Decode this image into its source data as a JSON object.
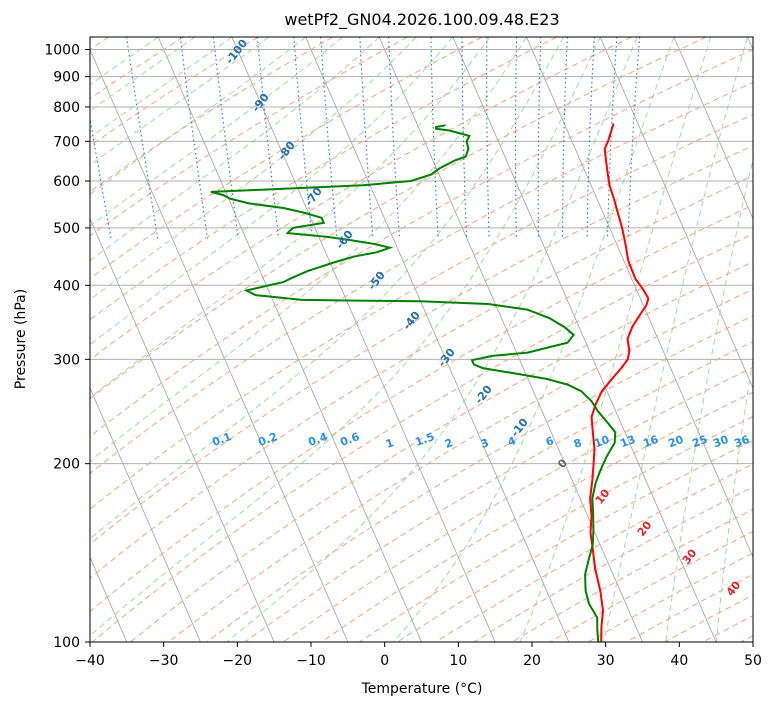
{
  "chart_data": {
    "type": "line",
    "title": "wetPf2_GN04.2026.100.09.48.E23",
    "xlabel": "Temperature (°C)",
    "ylabel": "Pressure (hPa)",
    "xlim": [
      -40,
      50
    ],
    "ylim": [
      1050,
      100
    ],
    "x_ticks": [
      "−40",
      "−30",
      "−20",
      "−10",
      "0",
      "10",
      "20",
      "30",
      "40",
      "50"
    ],
    "x_tick_values": [
      -40,
      -30,
      -20,
      -10,
      0,
      10,
      20,
      30,
      40,
      50
    ],
    "y_ticks": [
      "100",
      "200",
      "300",
      "400",
      "500",
      "600",
      "700",
      "800",
      "900",
      "1000"
    ],
    "y_tick_values": [
      100,
      200,
      300,
      400,
      500,
      600,
      700,
      800,
      900,
      1000
    ],
    "series": [
      {
        "name": "Temperature",
        "color": "#ff0000",
        "points": [
          [
            26.7,
            750
          ],
          [
            26,
            730
          ],
          [
            24.9,
            700
          ],
          [
            24,
            680
          ],
          [
            23.5,
            650
          ],
          [
            23,
            620
          ],
          [
            22.5,
            590
          ],
          [
            22.3,
            560
          ],
          [
            22,
            530
          ],
          [
            21.7,
            500
          ],
          [
            21.2,
            470
          ],
          [
            20.6,
            440
          ],
          [
            20.5,
            410
          ],
          [
            20.9,
            395
          ],
          [
            21.1,
            380
          ],
          [
            20.4,
            370
          ],
          [
            18.8,
            355
          ],
          [
            17.2,
            340
          ],
          [
            15.9,
            325
          ],
          [
            15.4,
            310
          ],
          [
            14.7,
            300
          ],
          [
            13.3,
            290
          ],
          [
            11.4,
            278
          ],
          [
            9.3,
            265
          ],
          [
            7.7,
            252
          ],
          [
            6.4,
            240
          ],
          [
            5.6,
            225
          ],
          [
            4.9,
            212
          ],
          [
            3.9,
            200
          ],
          [
            2.8,
            188
          ],
          [
            1.4,
            175
          ],
          [
            0.5,
            163
          ],
          [
            -0.6,
            153
          ],
          [
            -1.3,
            143
          ],
          [
            -2.1,
            133
          ],
          [
            -2.7,
            122
          ],
          [
            -3.5,
            113
          ],
          [
            -4.7,
            106
          ],
          [
            -5.6,
            100
          ]
        ]
      },
      {
        "name": "Dewpoint",
        "color": "#008000",
        "points": [
          [
            3.8,
            745
          ],
          [
            2.4,
            740
          ],
          [
            2.3,
            735
          ],
          [
            4,
            730
          ],
          [
            6.4,
            715
          ],
          [
            5.7,
            700
          ],
          [
            5.5,
            680
          ],
          [
            4.7,
            660
          ],
          [
            3,
            650
          ],
          [
            1.7,
            640
          ],
          [
            0.4,
            630
          ],
          [
            -1.1,
            615
          ],
          [
            -4.2,
            600
          ],
          [
            -11,
            590
          ],
          [
            -25,
            580
          ],
          [
            -32,
            575
          ],
          [
            -30.5,
            568
          ],
          [
            -29.8,
            560
          ],
          [
            -27.5,
            550
          ],
          [
            -23,
            540
          ],
          [
            -20.5,
            530
          ],
          [
            -18.5,
            520
          ],
          [
            -18.5,
            510
          ],
          [
            -23,
            500
          ],
          [
            -24,
            490
          ],
          [
            -19,
            483
          ],
          [
            -16,
            477
          ],
          [
            -13,
            470
          ],
          [
            -11,
            463
          ],
          [
            -13,
            455
          ],
          [
            -16.5,
            447
          ],
          [
            -19.5,
            437
          ],
          [
            -23.5,
            423
          ],
          [
            -26,
            412
          ],
          [
            -27.5,
            405
          ],
          [
            -30.5,
            398
          ],
          [
            -33,
            392
          ],
          [
            -32,
            385
          ],
          [
            -26,
            378
          ],
          [
            -20,
            377
          ],
          [
            -10,
            376
          ],
          [
            -1,
            372
          ],
          [
            4,
            364
          ],
          [
            6.5,
            352
          ],
          [
            8,
            340
          ],
          [
            8.8,
            330
          ],
          [
            7.5,
            320
          ],
          [
            4.5,
            314
          ],
          [
            1.5,
            308
          ],
          [
            -3.5,
            304
          ],
          [
            -6.5,
            299
          ],
          [
            -6.5,
            294
          ],
          [
            -5.5,
            290
          ],
          [
            -1.5,
            284
          ],
          [
            2.5,
            278
          ],
          [
            5,
            272
          ],
          [
            6.5,
            265
          ],
          [
            7.3,
            255
          ],
          [
            7.6,
            245
          ],
          [
            8.2,
            235
          ],
          [
            8.7,
            226
          ],
          [
            8,
            217
          ],
          [
            6,
            205
          ],
          [
            4.6,
            196
          ],
          [
            3.1,
            186
          ],
          [
            1.7,
            175
          ],
          [
            0.9,
            165
          ],
          [
            0,
            155
          ],
          [
            -1,
            146
          ],
          [
            -2.4,
            138
          ],
          [
            -3.8,
            130
          ],
          [
            -4.7,
            122
          ],
          [
            -5,
            116
          ],
          [
            -4.7,
            110
          ],
          [
            -5.4,
            105
          ],
          [
            -6,
            100
          ]
        ]
      }
    ],
    "dry_adiabat_labels": [
      "-100",
      "-90",
      "-80",
      "-70",
      "-60",
      "-50",
      "-40",
      "-30",
      "-20",
      "-10",
      "0",
      "10",
      "20",
      "30",
      "40"
    ],
    "mixing_ratio_labels": [
      "0.1",
      "0.2",
      "0.4",
      "0.6",
      "1",
      "1.5",
      "2",
      "3",
      "4",
      "6",
      "8",
      "10",
      "13",
      "16",
      "20",
      "25",
      "30",
      "36"
    ]
  },
  "colors": {
    "temperature": "#ff0000",
    "dewpoint": "#008000",
    "isotherm": "#a0a0a0",
    "dry_adiabat": "#f4a582",
    "moist_adiabat": "#8fcf8f",
    "mixing_ratio": "#1f77d4",
    "label_adiabat": "#1f6fb0",
    "label_warm": "#d62728",
    "label_zero": "#666666"
  }
}
